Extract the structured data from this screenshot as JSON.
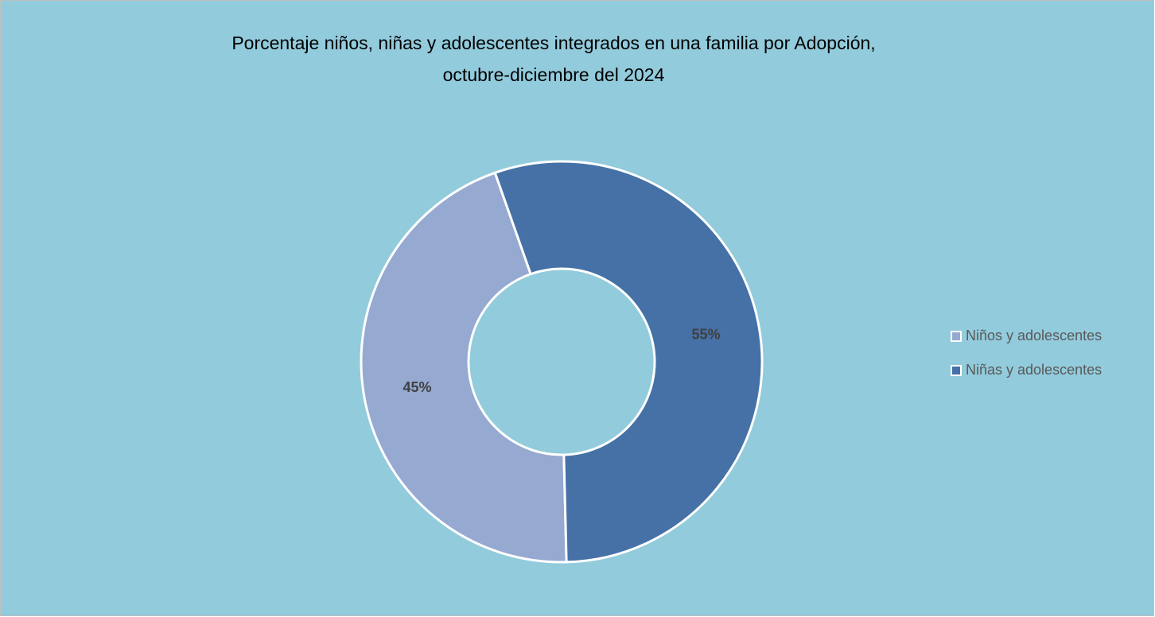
{
  "chart_data": {
    "type": "donut",
    "title": [
      "Porcentaje niños, niñas y adolescentes integrados en una familia por Adopción,",
      "octubre-diciembre del 2024"
    ],
    "categories": [
      "Niños y adolescentes",
      "Niñas y adolescentes"
    ],
    "values": [
      45,
      55
    ],
    "value_labels": [
      "45%",
      "55%"
    ],
    "colors": [
      "#95a9d1",
      "#4571a6"
    ],
    "legend": "right"
  }
}
